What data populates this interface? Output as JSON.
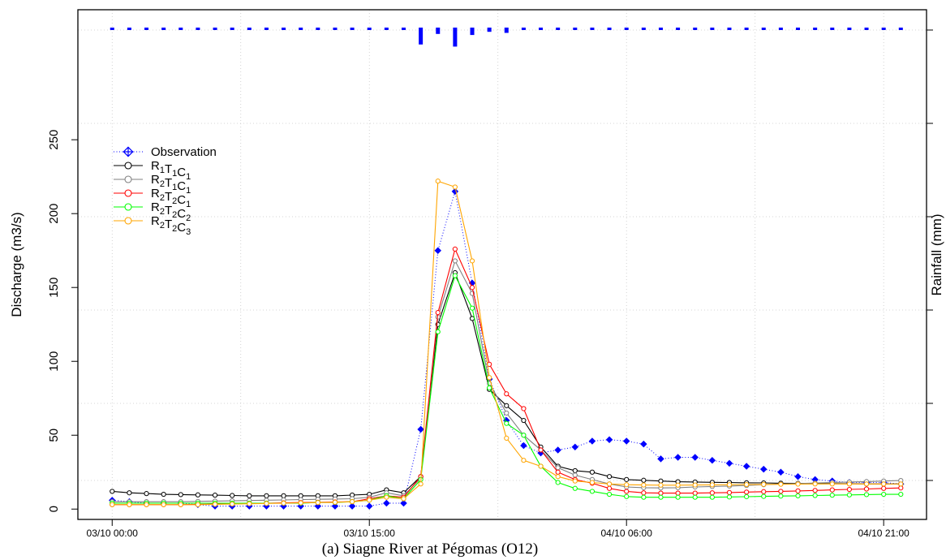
{
  "chart_data": {
    "type": "line",
    "caption": "(a) Siagne River at Pégomas (O12)",
    "ylabel": "Discharge (m3/s)",
    "y2label": "Rainfall (mm)",
    "ylim": [
      -7,
      338
    ],
    "yticks": [
      0,
      50,
      100,
      150,
      200,
      250
    ],
    "xlim": [
      -2,
      47.5
    ],
    "xticks": [
      {
        "x": 0,
        "label": "03/10 00:00"
      },
      {
        "x": 15,
        "label": "03/10 15:00"
      },
      {
        "x": 30,
        "label": "04/10 06:00"
      },
      {
        "x": 45,
        "label": "04/10 21:00"
      }
    ],
    "grid": true,
    "legend_position": "top-left",
    "rainfall": {
      "x": [
        0,
        1,
        2,
        3,
        4,
        5,
        6,
        7,
        8,
        9,
        10,
        11,
        12,
        13,
        14,
        15,
        16,
        17,
        18,
        19,
        20,
        21,
        22,
        23,
        24,
        25,
        26,
        27,
        28,
        29,
        30,
        31,
        32,
        33,
        34,
        35,
        36,
        37,
        38,
        39,
        40,
        41,
        42,
        43,
        44,
        45,
        46
      ],
      "values": [
        1,
        1,
        1,
        1,
        1,
        1,
        1,
        1,
        1,
        1,
        1,
        1,
        1,
        1,
        2,
        1,
        1,
        1,
        16,
        6,
        18,
        7,
        4,
        5,
        1,
        1,
        1,
        1,
        1,
        1,
        1,
        1,
        1,
        1,
        1,
        1,
        1,
        1,
        1,
        1,
        1,
        1,
        1,
        1,
        1,
        1,
        1
      ]
    },
    "series": [
      {
        "name": "Observation",
        "style": "observation",
        "color": "#0000ff",
        "x": [
          0,
          1,
          2,
          3,
          4,
          5,
          6,
          7,
          8,
          9,
          10,
          11,
          12,
          13,
          14,
          15,
          16,
          17,
          18,
          19,
          20,
          21,
          22,
          23,
          24,
          25,
          26,
          27,
          28,
          29,
          30,
          31,
          32,
          33,
          34,
          35,
          36,
          37,
          38,
          39,
          40,
          41,
          42,
          43,
          44,
          45,
          46
        ],
        "values": [
          6,
          5,
          4,
          4,
          4,
          3,
          2,
          2,
          2,
          2,
          2,
          2,
          2,
          2,
          2,
          2,
          4,
          4,
          54,
          175,
          215,
          153,
          88,
          60,
          43,
          38,
          40,
          42,
          46,
          47,
          46,
          44,
          34,
          35,
          35,
          33,
          31,
          29,
          27,
          25,
          22,
          20,
          19,
          18,
          18,
          18,
          17
        ]
      },
      {
        "name": "R1T1C1",
        "label_parts": [
          "R",
          "1",
          "T",
          "1",
          "C",
          "1"
        ],
        "color": "#000000",
        "x": [
          0,
          1,
          2,
          3,
          4,
          5,
          6,
          7,
          8,
          9,
          10,
          11,
          12,
          13,
          14,
          15,
          16,
          17,
          18,
          19,
          20,
          21,
          22,
          23,
          24,
          25,
          26,
          27,
          28,
          29,
          30,
          31,
          32,
          33,
          34,
          35,
          36,
          37,
          38,
          39,
          40,
          41,
          42,
          43,
          44,
          45,
          46
        ],
        "values": [
          12,
          11,
          10.5,
          10,
          9.8,
          9.6,
          9.4,
          9.2,
          9,
          9,
          9,
          9,
          9,
          9,
          9.5,
          10,
          13,
          11,
          22,
          125,
          160,
          129,
          81,
          70,
          60,
          42,
          29,
          26,
          25,
          22,
          20,
          19.5,
          19,
          18.5,
          18.3,
          18.1,
          18,
          17.8,
          17.7,
          17.5,
          17.4,
          17.3,
          17.2,
          17.1,
          17,
          17,
          17
        ]
      },
      {
        "name": "R2T1C1",
        "label_parts": [
          "R",
          "2",
          "T",
          "1",
          "C",
          "1"
        ],
        "color": "#808080",
        "x": [
          0,
          1,
          2,
          3,
          4,
          5,
          6,
          7,
          8,
          9,
          10,
          11,
          12,
          13,
          14,
          15,
          16,
          17,
          18,
          19,
          20,
          21,
          22,
          23,
          24,
          25,
          26,
          27,
          28,
          29,
          30,
          31,
          32,
          33,
          34,
          35,
          36,
          37,
          38,
          39,
          40,
          41,
          42,
          43,
          44,
          45,
          46
        ],
        "values": [
          5,
          5,
          5,
          5,
          5,
          5.2,
          5.4,
          5.6,
          5.8,
          6,
          6.2,
          6.4,
          6.6,
          6.8,
          7,
          8,
          11,
          9,
          21,
          130,
          168,
          146,
          85,
          65,
          50,
          40,
          28,
          23,
          20,
          17,
          15,
          14.5,
          14.3,
          14.5,
          15,
          15.3,
          15.6,
          16,
          16.5,
          17,
          17.3,
          17.6,
          18,
          18.3,
          18.6,
          19,
          19.3
        ]
      },
      {
        "name": "R2T2C1",
        "label_parts": [
          "R",
          "2",
          "T",
          "2",
          "C",
          "1"
        ],
        "color": "#ff0000",
        "x": [
          0,
          1,
          2,
          3,
          4,
          5,
          6,
          7,
          8,
          9,
          10,
          11,
          12,
          13,
          14,
          15,
          16,
          17,
          18,
          19,
          20,
          21,
          22,
          23,
          24,
          25,
          26,
          27,
          28,
          29,
          30,
          31,
          32,
          33,
          34,
          35,
          36,
          37,
          38,
          39,
          40,
          41,
          42,
          43,
          44,
          45,
          46
        ],
        "values": [
          3,
          3,
          3,
          3,
          3,
          3.2,
          3.4,
          3.6,
          3.8,
          4,
          4.2,
          4.4,
          4.6,
          4.8,
          5,
          7,
          9,
          8,
          22,
          133,
          176,
          150,
          98,
          78,
          68,
          40,
          25,
          20,
          17.5,
          14,
          12,
          11,
          10.8,
          10.8,
          10.8,
          11,
          11.2,
          11.5,
          11.8,
          12,
          12.3,
          12.6,
          13,
          13.3,
          13.6,
          14,
          14.3
        ]
      },
      {
        "name": "R2T2C2",
        "label_parts": [
          "R",
          "2",
          "T",
          "2",
          "C",
          "2"
        ],
        "color": "#00ff00",
        "x": [
          0,
          1,
          2,
          3,
          4,
          5,
          6,
          7,
          8,
          9,
          10,
          11,
          12,
          13,
          14,
          15,
          16,
          17,
          18,
          19,
          20,
          21,
          22,
          23,
          24,
          25,
          26,
          27,
          28,
          29,
          30,
          31,
          32,
          33,
          34,
          35,
          36,
          37,
          38,
          39,
          40,
          41,
          42,
          43,
          44,
          45,
          46
        ],
        "values": [
          4,
          4,
          4,
          4,
          4,
          4,
          4,
          4,
          4,
          4,
          4,
          4,
          4.5,
          4.5,
          5,
          6,
          9,
          7,
          20,
          120,
          158,
          136,
          82,
          58,
          50,
          29,
          18,
          14,
          12,
          10,
          8.5,
          8,
          8,
          8,
          8,
          8,
          8.2,
          8.4,
          8.6,
          8.8,
          9,
          9.2,
          9.4,
          9.6,
          9.8,
          10,
          10
        ]
      },
      {
        "name": "R2T2C3",
        "label_parts": [
          "R",
          "2",
          "T",
          "2",
          "C",
          "3"
        ],
        "color": "#ffa500",
        "x": [
          0,
          1,
          2,
          3,
          4,
          5,
          6,
          7,
          8,
          9,
          10,
          11,
          12,
          13,
          14,
          15,
          16,
          17,
          18,
          19,
          20,
          21,
          22,
          23,
          24,
          25,
          26,
          27,
          28,
          29,
          30,
          31,
          32,
          33,
          34,
          35,
          36,
          37,
          38,
          39,
          40,
          41,
          42,
          43,
          44,
          45,
          46
        ],
        "values": [
          3,
          3,
          3,
          3,
          3,
          3,
          3.2,
          3.4,
          3.6,
          3.8,
          4,
          4.2,
          4.4,
          4.6,
          5,
          6,
          8,
          7,
          17,
          222,
          218,
          168,
          89,
          48,
          33,
          29,
          22,
          19,
          18,
          17,
          16.5,
          16.3,
          16.2,
          16.2,
          16.3,
          16.4,
          16.5,
          16.6,
          16.7,
          16.8,
          16.9,
          17,
          17,
          17,
          17,
          17,
          17
        ]
      }
    ]
  }
}
